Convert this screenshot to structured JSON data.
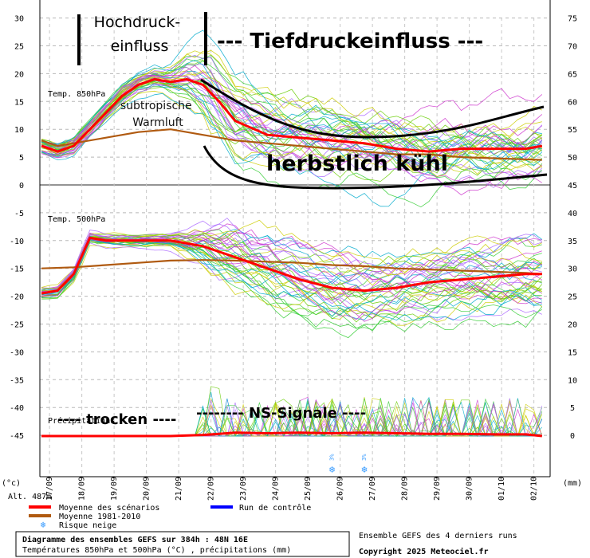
{
  "chart_data": {
    "type": "line",
    "left_axis": {
      "unit": "(°c)",
      "ticks": [
        30,
        25,
        20,
        15,
        10,
        5,
        0,
        -5,
        -10,
        -15,
        -20,
        -25,
        -30,
        -35,
        -40,
        -45
      ],
      "range": [
        -45,
        30
      ]
    },
    "right_axis": {
      "unit": "(mm)",
      "ticks": [
        75,
        70,
        65,
        60,
        55,
        50,
        45,
        40,
        35,
        30,
        25,
        20,
        15,
        10,
        5,
        0
      ],
      "range": [
        0,
        75
      ]
    },
    "altitude": "Alt. 487m",
    "x_ticks": [
      "17/09",
      "18/09",
      "19/09",
      "20/09",
      "21/09",
      "22/09",
      "23/09",
      "24/09",
      "25/09",
      "26/09",
      "27/09",
      "28/09",
      "29/09",
      "30/09",
      "01/10",
      "02/10"
    ],
    "panel_labels": {
      "t850": "Temp. 850hPa",
      "t500": "Temp. 500hPa",
      "precip": "Précipitations"
    },
    "snow_risk_labels": [
      {
        "date": "26/09",
        "pct": "3%"
      },
      {
        "date": "27/09",
        "pct": "3%"
      }
    ],
    "series": [
      {
        "name": "Moyenne des scénarios",
        "panel": "t850",
        "x": [
          0.0,
          0.5,
          1.0,
          1.5,
          2.0,
          2.5,
          3.0,
          3.5,
          4.0,
          4.5,
          5.0,
          5.5,
          6.0,
          7.0,
          8.0,
          9.0,
          10.0,
          11.0,
          12.0,
          13.0,
          14.0,
          15.0,
          15.5
        ],
        "values": [
          7,
          6,
          7,
          10,
          13,
          16,
          18,
          19,
          18.5,
          19,
          18,
          15,
          11.5,
          9,
          8.5,
          8,
          7.5,
          6.5,
          6,
          6.5,
          6.5,
          6.5,
          7
        ]
      },
      {
        "name": "Moyenne 1981-2010",
        "panel": "t850",
        "x": [
          0,
          0.5,
          1,
          2,
          3,
          4,
          5,
          6,
          7,
          8,
          9,
          10,
          11,
          12,
          13,
          14,
          15,
          15.5
        ],
        "values": [
          8,
          7,
          7.5,
          8.5,
          9.5,
          10,
          9,
          8,
          7.5,
          7,
          6.5,
          6,
          5.5,
          5.5,
          5,
          4.8,
          4.6,
          4.5
        ]
      },
      {
        "name": "Moyenne des scénarios",
        "panel": "t500",
        "x": [
          0,
          0.5,
          1,
          1.5,
          2,
          3,
          4,
          5,
          6,
          7,
          8,
          9,
          10,
          11,
          12,
          13,
          14,
          15,
          15.5
        ],
        "values": [
          -19.5,
          -19,
          -16,
          -9.5,
          -10,
          -10,
          -10,
          -11,
          -13,
          -15,
          -17,
          -18.5,
          -19,
          -18.5,
          -17.5,
          -17,
          -16.5,
          -16,
          -16
        ]
      },
      {
        "name": "Moyenne 1981-2010",
        "panel": "t500",
        "x": [
          0,
          1,
          2,
          3,
          4,
          5,
          6,
          7,
          8,
          9,
          10,
          11,
          12,
          13,
          14,
          15,
          15.5
        ],
        "values": [
          -15,
          -14.8,
          -14.4,
          -14,
          -13.6,
          -13.5,
          -13.6,
          -13.8,
          -14,
          -14.4,
          -14.6,
          -15,
          -15.2,
          -15.4,
          -15.6,
          -15.8,
          -16
        ]
      },
      {
        "name": "Moyenne des scénarios",
        "panel": "precip",
        "x": [
          0,
          1,
          2,
          3,
          4,
          5,
          5.5,
          6,
          7,
          8,
          9,
          10,
          11,
          12,
          13,
          14,
          15,
          15.5
        ],
        "values": [
          0,
          0,
          0,
          0,
          0,
          0.2,
          0.4,
          0.6,
          0.5,
          0.6,
          0.5,
          0.6,
          0.5,
          0.4,
          0.4,
          0.3,
          0.3,
          0
        ]
      }
    ]
  },
  "annotations": {
    "hochdruck": "Hochdruck-\neinfluss",
    "tiefdruck": "--- Tiefdruckeinfluss ---",
    "subtropisch": "subtropische\nWarmluft",
    "herbstlich": "herbstlich kühl",
    "trocken": "---- trocken ----",
    "ns_signale": "-------- NS-Signale ----"
  },
  "legend": {
    "items": [
      {
        "label": "Moyenne des scénarios",
        "color": "#ff0000"
      },
      {
        "label": "Run de contrôle",
        "color": "#0000ff"
      },
      {
        "label": "Moyenne 1981-2010",
        "color": "#b05a10"
      },
      {
        "label": "Risque neige",
        "color": "#3399ff"
      }
    ]
  },
  "footer": {
    "box_title": "Diagramme des ensembles GEFS sur 384h : 48N 16E",
    "box_subtitle": "Températures 850hPa et 500hPa (°C) , précipitations (mm)",
    "ensemble_note": "Ensemble GEFS des 4 derniers runs",
    "copyright": "Copyright 2025 Meteociel.fr"
  },
  "colors": {
    "mean": "#ff0000",
    "control": "#0000ff",
    "normal": "#b05a10",
    "members": [
      "#33cc33",
      "#cc33cc",
      "#cccc00",
      "#00aacc",
      "#66cc00",
      "#aa66ff"
    ]
  }
}
